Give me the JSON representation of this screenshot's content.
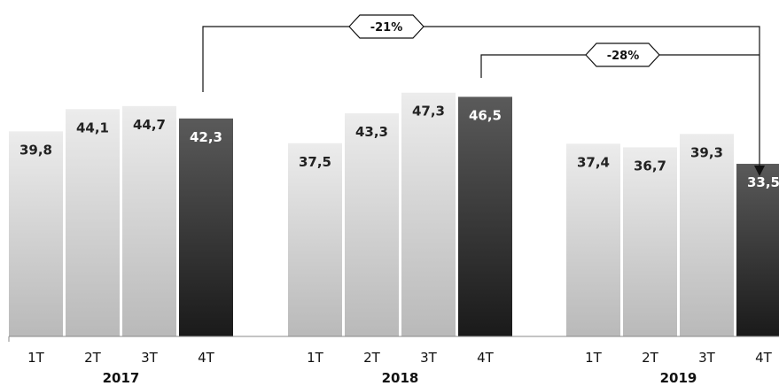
{
  "chart_data": {
    "type": "bar",
    "title": "",
    "xlabel": "",
    "ylabel": "",
    "ylim": [
      0,
      50
    ],
    "grid": false,
    "legend": "none",
    "groups": [
      {
        "name": "2017",
        "categories": [
          "1T",
          "2T",
          "3T",
          "4T"
        ],
        "values": [
          39.8,
          44.1,
          44.7,
          42.3
        ],
        "labels": [
          "39,8",
          "44,1",
          "44,7",
          "42,3"
        ]
      },
      {
        "name": "2018",
        "categories": [
          "1T",
          "2T",
          "3T",
          "4T"
        ],
        "values": [
          37.5,
          43.3,
          47.3,
          46.5
        ],
        "labels": [
          "37,5",
          "43,3",
          "47,3",
          "46,5"
        ]
      },
      {
        "name": "2019",
        "categories": [
          "1T",
          "2T",
          "3T",
          "4T"
        ],
        "values": [
          37.4,
          36.7,
          39.3,
          33.5
        ],
        "labels": [
          "37,4",
          "36,7",
          "39,3",
          "33,5"
        ]
      }
    ],
    "annotations": [
      {
        "label": "-21%",
        "from": "2017 4T",
        "to": "2019 4T"
      },
      {
        "label": "-28%",
        "from": "2018 4T",
        "to": "2019 4T"
      }
    ],
    "colors": {
      "light_top": "#ececec",
      "light_bottom": "#b9b9b9",
      "dark_top": "#5a5a5a",
      "dark_bottom": "#1a1a1a",
      "light_text": "#222222",
      "dark_text": "#ffffff"
    }
  }
}
